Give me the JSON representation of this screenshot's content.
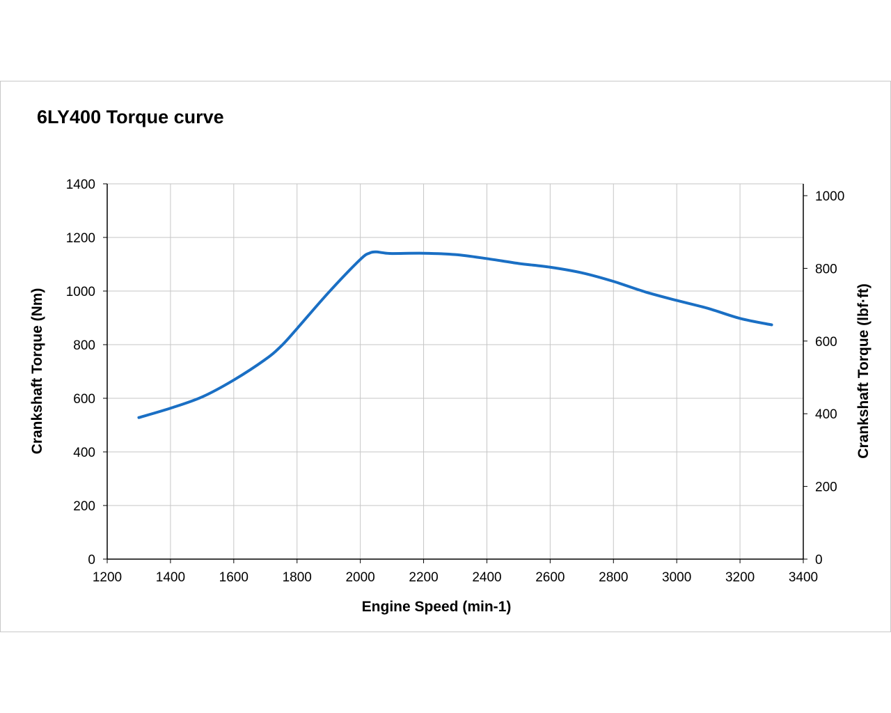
{
  "chart_data": {
    "type": "line",
    "title": "6LY400 Torque curve",
    "xlabel": "Engine Speed (min-1)",
    "ylabel": "Crankshaft Torque (Nm)",
    "y2label": "Crankshaft Torque (lbf·ft)",
    "xlim": [
      1200,
      3400
    ],
    "ylim": [
      0,
      1400
    ],
    "y2lim": [
      0,
      1032.6
    ],
    "x_ticks": [
      1200,
      1400,
      1600,
      1800,
      2000,
      2200,
      2400,
      2600,
      2800,
      3000,
      3200,
      3400
    ],
    "y_ticks": [
      0,
      200,
      400,
      600,
      800,
      1000,
      1200,
      1400
    ],
    "y2_ticks": [
      0,
      200,
      400,
      600,
      800,
      1000
    ],
    "grid": true,
    "line_color": "#1a6fc4",
    "series": [
      {
        "x": [
          1300,
          1400,
          1500,
          1600,
          1700,
          1750,
          1800,
          1900,
          2000,
          2030,
          2050,
          2070,
          2100,
          2200,
          2300,
          2400,
          2500,
          2600,
          2700,
          2800,
          2900,
          3000,
          3100,
          3200,
          3300
        ],
        "y": [
          528,
          563,
          605,
          668,
          745,
          795,
          860,
          995,
          1118,
          1142,
          1146,
          1143,
          1140,
          1141,
          1136,
          1121,
          1103,
          1089,
          1068,
          1036,
          997,
          965,
          935,
          898,
          874
        ]
      }
    ]
  }
}
